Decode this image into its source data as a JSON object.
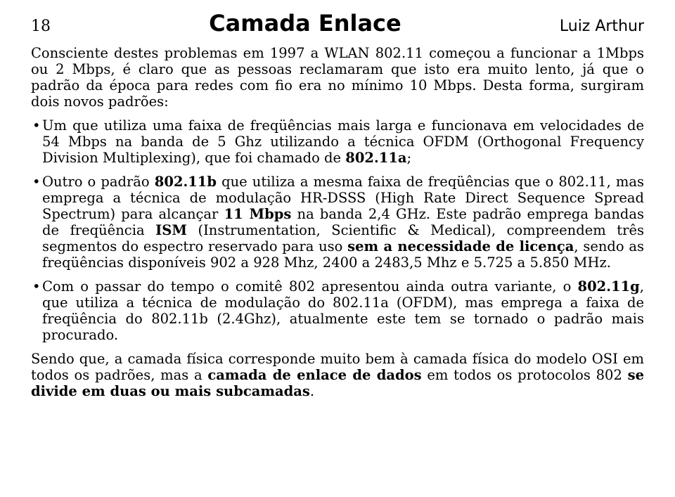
{
  "header": {
    "page_number": "18",
    "title": "Camada Enlace",
    "author": "Luiz Arthur"
  },
  "paragraphs": {
    "intro": "Consciente destes problemas em 1997 a WLAN 802.11 começou a funcionar a 1Mbps ou 2 Mbps, é claro que as pessoas reclamaram que isto era muito lento, já que o padrão da época para redes com fio era no mínimo 10 Mbps. Desta forma, surgiram dois novos padrões:",
    "b1_a": "Um que utiliza uma faixa de freqüências mais larga e funcionava em velocidades de 54 Mbps na banda de 5 Ghz utilizando a técnica OFDM (Orthogonal Frequency Division Multiplexing), que foi chamado de ",
    "b1_b": "802.11a",
    "b1_c": ";",
    "b2_a": "Outro o padrão ",
    "b2_b": "802.11b",
    "b2_c": " que utiliza a mesma faixa de freqüências que o 802.11, mas emprega a técnica de modulação HR-DSSS (High Rate Direct Sequence Spread Spectrum) para alcançar ",
    "b2_d": "11 Mbps",
    "b2_e": " na banda 2,4 GHz. Este padrão emprega bandas de freqüência ",
    "b2_f": "ISM",
    "b2_g": " (Instrumentation, Scientific & Medical), compreendem três segmentos do espectro reservado para uso ",
    "b2_h": "sem a necessidade de licença",
    "b2_i": ", sendo as freqüências disponíveis 902 a 928 Mhz, 2400 a 2483,5 Mhz e 5.725 a 5.850 MHz.",
    "b3_a": "Com o passar do tempo o comitê 802 apresentou ainda outra variante, o ",
    "b3_b": "802.11g",
    "b3_c": ", que utiliza a técnica de modulação do 802.11a (OFDM), mas emprega a faixa de freqüência do 802.11b (2.4Ghz), atualmente este tem se tornado o padrão mais procurado.",
    "closing_a": "Sendo que, a camada física corresponde muito bem à camada física do modelo OSI em todos os padrões, mas a ",
    "closing_b": "camada de enlace de dados",
    "closing_c": " em todos os protocolos 802 ",
    "closing_d": "se divide em duas ou mais subcamadas",
    "closing_e": "."
  }
}
